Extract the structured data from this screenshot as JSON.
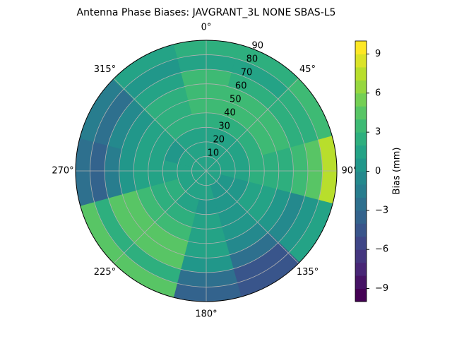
{
  "chart_data": {
    "type": "polar_contour",
    "title": "Antenna Phase Biases: JAVGRANT_3L     NONE SBAS-L5",
    "azimuths": [
      0,
      30,
      60,
      90,
      120,
      150,
      180,
      210,
      240,
      270,
      300,
      330
    ],
    "zenith": [
      5,
      15,
      25,
      35,
      45,
      55,
      65,
      75,
      85
    ],
    "z": [
      [
        1,
        1,
        1,
        1,
        1,
        1,
        1,
        1,
        1,
        1,
        1,
        1
      ],
      [
        1,
        1,
        1,
        1,
        0,
        0,
        1,
        1,
        1,
        1,
        1,
        1
      ],
      [
        1,
        1,
        1,
        1,
        0,
        0,
        0,
        1,
        2,
        1,
        0,
        1
      ],
      [
        2,
        2,
        2,
        2,
        1,
        0,
        1,
        2,
        2,
        1,
        1,
        2
      ],
      [
        3,
        3,
        3,
        2,
        1,
        0,
        1,
        3,
        3,
        1,
        1,
        2
      ],
      [
        3,
        3,
        3,
        2,
        0,
        -1,
        1,
        4,
        4,
        0,
        0,
        2
      ],
      [
        3,
        2,
        2,
        3,
        -1,
        -3,
        0,
        4,
        4,
        -2,
        -1,
        1
      ],
      [
        1,
        1,
        2,
        4,
        0,
        -5,
        -3,
        2,
        2,
        -4,
        -3,
        0
      ],
      [
        2,
        2,
        3,
        7,
        1,
        -5,
        -4,
        4,
        4,
        -3,
        -2,
        1
      ]
    ],
    "rlim": [
      0,
      90
    ],
    "rticks": [
      10,
      20,
      30,
      40,
      50,
      60,
      70,
      80,
      90
    ],
    "thetaticks": [
      {
        "value": 0,
        "label": "0°"
      },
      {
        "value": 45,
        "label": "45°"
      },
      {
        "value": 90,
        "label": "90°"
      },
      {
        "value": 135,
        "label": "135°"
      },
      {
        "value": 180,
        "label": "180°"
      },
      {
        "value": 225,
        "label": "225°"
      },
      {
        "value": 270,
        "label": "270°"
      },
      {
        "value": 315,
        "label": "315°"
      }
    ],
    "colormap": "viridis",
    "clim": [
      -10,
      10
    ],
    "levels": [
      -10,
      -9,
      -8,
      -7,
      -6,
      -5,
      -4,
      -3,
      -2,
      -1,
      0,
      1,
      2,
      3,
      4,
      5,
      6,
      7,
      8,
      9,
      10
    ],
    "cticks": [
      {
        "value": -9,
        "label": "−9"
      },
      {
        "value": -6,
        "label": "−6"
      },
      {
        "value": -3,
        "label": "−3"
      },
      0,
      3,
      6,
      9
    ],
    "colorbar_label": "Bias (mm)",
    "grid": true
  }
}
